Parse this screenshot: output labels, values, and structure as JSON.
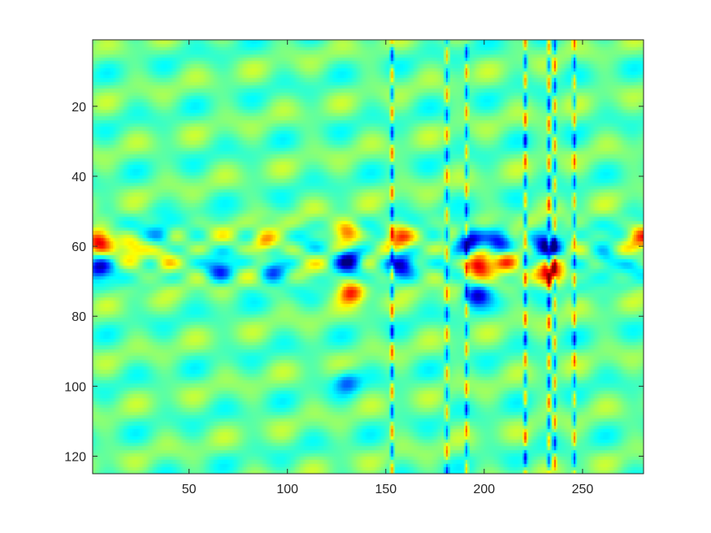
{
  "chart_data": {
    "type": "heatmap",
    "title": "",
    "xlabel": "",
    "ylabel": "",
    "xlim": [
      1,
      281
    ],
    "ylim": [
      1,
      125
    ],
    "y_reversed": true,
    "colormap": "jet",
    "x_ticks": [
      50,
      100,
      150,
      200,
      250
    ],
    "x_tick_labels": [
      "50",
      "100",
      "150",
      "200",
      "250"
    ],
    "y_ticks": [
      20,
      40,
      60,
      80,
      100,
      120
    ],
    "y_tick_labels": [
      "20",
      "40",
      "60",
      "80",
      "100",
      "120"
    ],
    "grid": false,
    "features": {
      "description_free": true,
      "band_rows_positive": [
        58,
        72
      ],
      "band_rows_negative": [
        57,
        64
      ],
      "strong_blobs": [
        {
          "x": 3,
          "y": 58,
          "value": 0.85
        },
        {
          "x": 3,
          "y": 66,
          "value": -0.7
        },
        {
          "x": 20,
          "y": 60,
          "value": 0.45
        },
        {
          "x": 35,
          "y": 57,
          "value": -0.45
        },
        {
          "x": 38,
          "y": 65,
          "value": 0.5
        },
        {
          "x": 65,
          "y": 67,
          "value": -0.55
        },
        {
          "x": 88,
          "y": 59,
          "value": 0.6
        },
        {
          "x": 92,
          "y": 67,
          "value": -0.6
        },
        {
          "x": 130,
          "y": 56,
          "value": 0.65
        },
        {
          "x": 131,
          "y": 64,
          "value": -1.0
        },
        {
          "x": 132,
          "y": 73,
          "value": 0.8
        },
        {
          "x": 157,
          "y": 57,
          "value": 0.55
        },
        {
          "x": 158,
          "y": 65,
          "value": -0.7
        },
        {
          "x": 130,
          "y": 99,
          "value": -0.45
        },
        {
          "x": 192,
          "y": 58,
          "value": -0.95
        },
        {
          "x": 208,
          "y": 58,
          "value": -0.65
        },
        {
          "x": 197,
          "y": 65,
          "value": 1.0
        },
        {
          "x": 212,
          "y": 64,
          "value": 0.65
        },
        {
          "x": 196,
          "y": 74,
          "value": -0.75
        },
        {
          "x": 232,
          "y": 60,
          "value": -0.85
        },
        {
          "x": 234,
          "y": 68,
          "value": 0.85
        },
        {
          "x": 281,
          "y": 57,
          "value": 0.6
        },
        {
          "x": 262,
          "y": 64,
          "value": -0.45
        }
      ],
      "vertical_streaks_x": [
        153,
        181,
        191,
        221,
        233,
        236,
        246
      ]
    },
    "colors": {
      "background": "#7fff7f",
      "axes": "#262626"
    }
  }
}
